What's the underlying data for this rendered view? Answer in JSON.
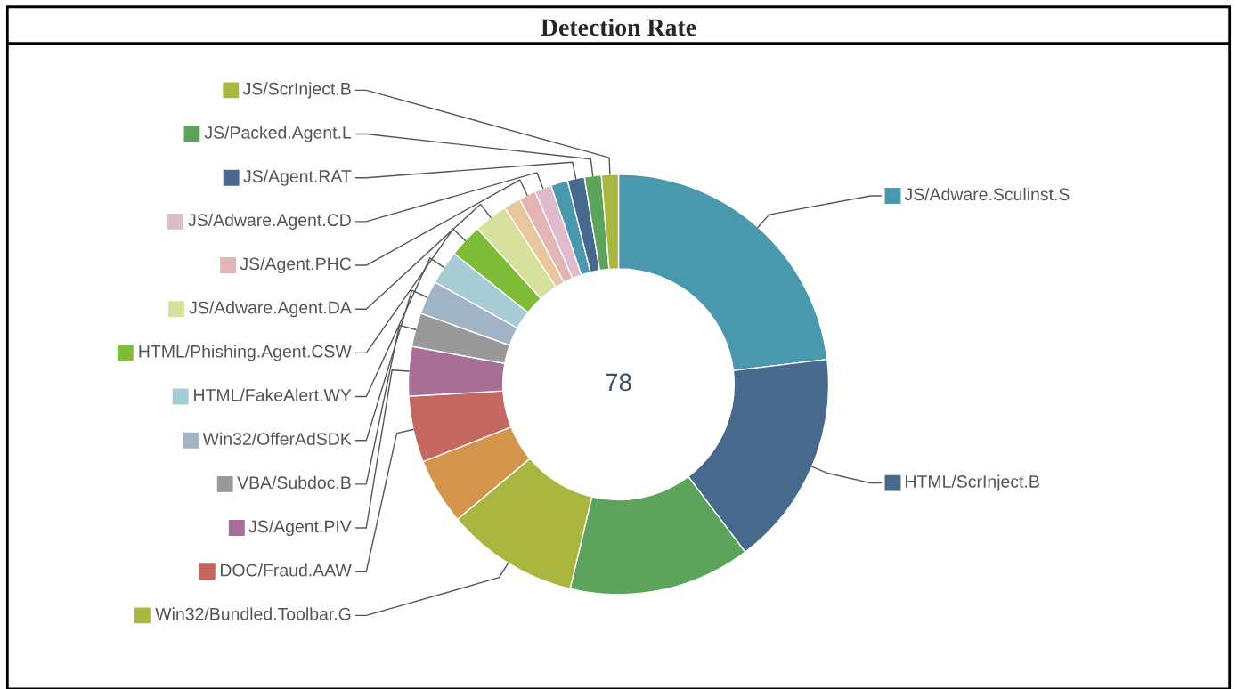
{
  "chart_data": {
    "type": "donut",
    "title": "Detection Rate",
    "categories": [
      "JS/Adware.Sculinst.S",
      "HTML/ScrInject.B",
      null,
      "Win32/Bundled.Toolbar.G",
      null,
      "DOC/Fraud.AAW",
      "JS/Agent.PIV",
      "VBA/Subdoc.B",
      "Win32/OfferAdSDK",
      "HTML/FakeAlert.WY",
      "HTML/Phishing.Agent.CSW",
      "JS/Adware.Agent.DA",
      null,
      "JS/Agent.PHC",
      "JS/Adware.Agent.CD",
      null,
      "JS/Agent.RAT",
      "JS/Packed.Agent.L",
      "JS/ScrInject.B"
    ],
    "values": [
      23.1,
      16.6,
      14,
      10.2,
      5.1,
      5.1,
      3.8,
      2.6,
      2.6,
      2.6,
      2.6,
      2.6,
      1.3,
      1.3,
      1.3,
      1.3,
      1.3,
      1.3,
      1.3
    ],
    "colors": [
      "#4a98ae",
      "#46698c",
      "#5ea35b",
      "#a9b740",
      "#d5944c",
      "#c5675e",
      "#a86f96",
      "#999999",
      "#a0b4c6",
      "#a6cdd6",
      "#7fbd38",
      "#d7e09c",
      "#e8c69e",
      "#e4b5b5",
      "#dfbccd",
      "#4a98ae",
      "#46698c",
      "#5ea35b",
      "#a9b740"
    ],
    "annotations": [
      "78"
    ],
    "legend": true
  }
}
